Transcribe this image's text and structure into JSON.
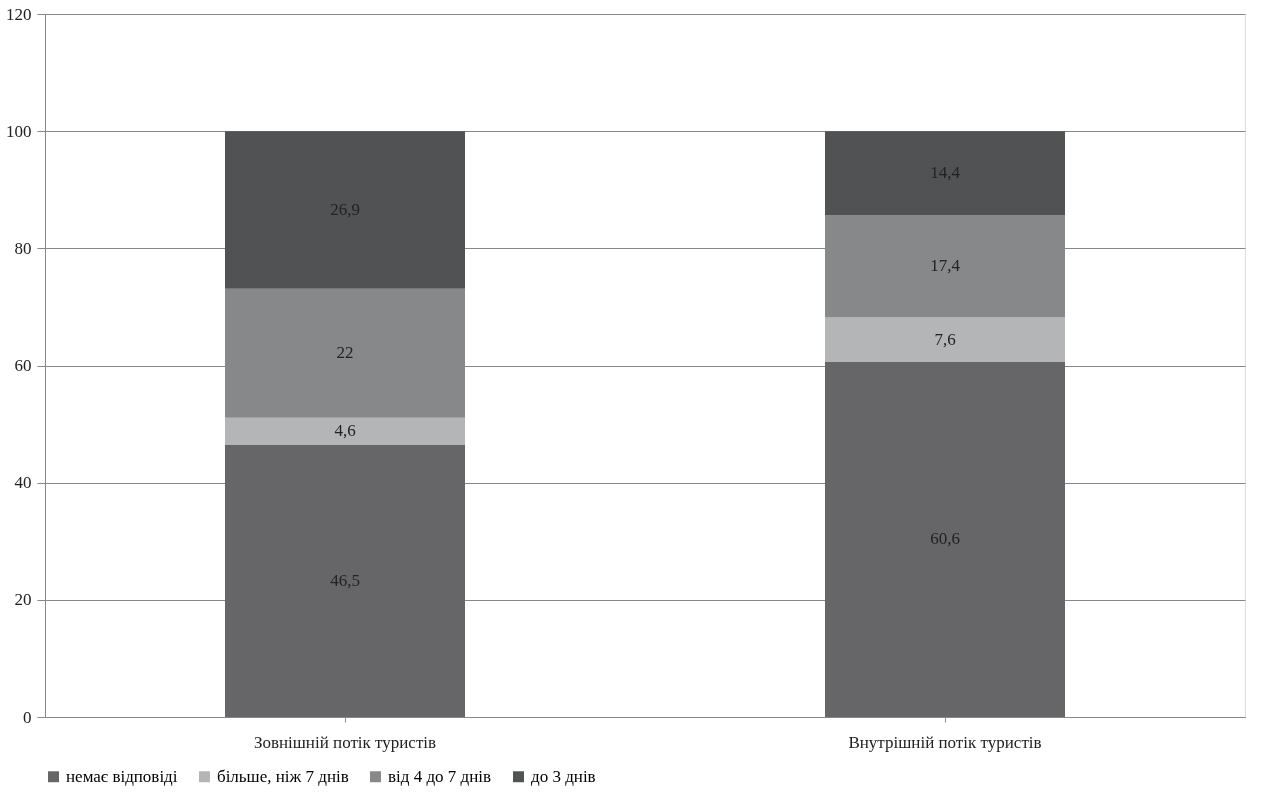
{
  "chart_data": {
    "type": "bar",
    "stacked": true,
    "categories": [
      "Зовнішній потік туристів",
      "Внутрішній потік туристів"
    ],
    "series": [
      {
        "name": "немає відповіді",
        "color": "#666668",
        "values": [
          46.5,
          60.6
        ],
        "value_labels": [
          "46,5",
          "60,6"
        ]
      },
      {
        "name": "більше, ніж 7 днів",
        "color": "#b4b5b7",
        "values": [
          4.6,
          7.6
        ],
        "value_labels": [
          "4,6",
          "7,6"
        ]
      },
      {
        "name": "від 4 до 7 днів",
        "color": "#87888a",
        "values": [
          22,
          17.4
        ],
        "value_labels": [
          "22",
          "17,4"
        ]
      },
      {
        "name": "до 3 днів",
        "color": "#515254",
        "values": [
          26.9,
          14.4
        ],
        "value_labels": [
          "26,9",
          "14,4"
        ]
      }
    ],
    "ylim": [
      0,
      120
    ],
    "yticks": [
      0,
      20,
      40,
      60,
      80,
      100,
      120
    ],
    "grid": "y",
    "legend": "bottom"
  }
}
